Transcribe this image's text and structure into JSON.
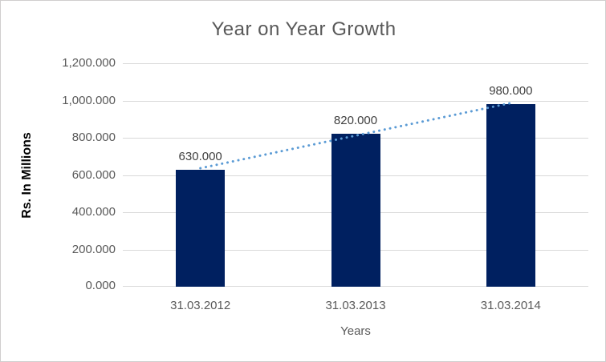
{
  "chart": {
    "colors": {
      "bar": "#002060",
      "trendline": "#5b9bd5",
      "gridline": "#d9d9d9",
      "axis_text": "#595959",
      "data_label_text": "#404040",
      "border": "#d0cece",
      "background": "#ffffff"
    }
  },
  "chart_data": {
    "type": "bar",
    "title": "Year on Year Growth",
    "xlabel": "Years",
    "ylabel": "Rs. In Millions",
    "categories": [
      "31.03.2012",
      "31.03.2013",
      "31.03.2014"
    ],
    "values": [
      630,
      820,
      980
    ],
    "data_labels": [
      "630.000",
      "820.000",
      "980.000"
    ],
    "y_ticks": [
      {
        "value": 0,
        "label": "0.000"
      },
      {
        "value": 200,
        "label": "200.000"
      },
      {
        "value": 400,
        "label": "400.000"
      },
      {
        "value": 600,
        "label": "600.000"
      },
      {
        "value": 800,
        "label": "800.000"
      },
      {
        "value": 1000,
        "label": "1,000.000"
      },
      {
        "value": 1200,
        "label": "1,200.000"
      }
    ],
    "ylim": [
      0,
      1200
    ],
    "grid": "horizontal",
    "legend": "none",
    "trendline": {
      "style": "dotted",
      "from_category_index": 0,
      "to_category_index": 2
    }
  }
}
